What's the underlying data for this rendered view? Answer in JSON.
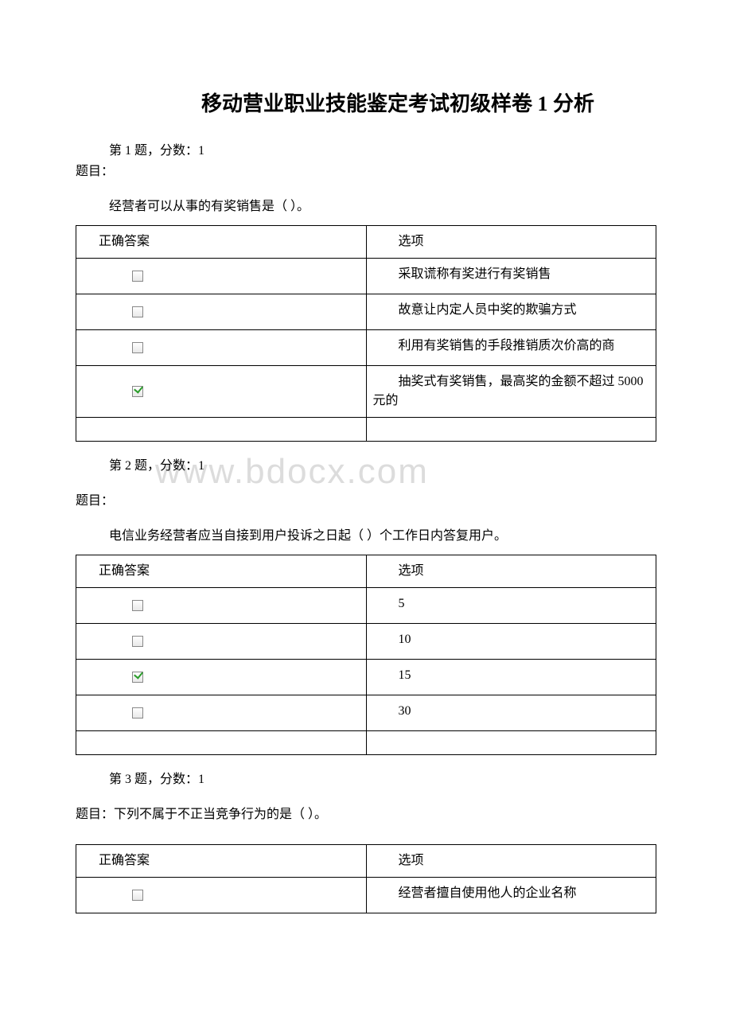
{
  "title": "移动营业职业技能鉴定考试初级样卷 1 分析",
  "watermark": "www.bdocx.com",
  "questions": [
    {
      "header": "第 1 题，分数：1",
      "label": "题目：",
      "text": "经营者可以从事的有奖销售是（ ）。",
      "columns": [
        "正确答案",
        "选项"
      ],
      "rows": [
        {
          "checked": false,
          "option": "采取谎称有奖进行有奖销售"
        },
        {
          "checked": false,
          "option": "故意让内定人员中奖的欺骗方式"
        },
        {
          "checked": false,
          "option": "利用有奖销售的手段推销质次价高的商"
        },
        {
          "checked": true,
          "option": "抽奖式有奖销售，最高奖的金额不超过 5000 元的"
        }
      ]
    },
    {
      "header": "第 2 题，分数：1",
      "label": "题目：",
      "text": "电信业务经营者应当自接到用户投诉之日起（ ）个工作日内答复用户。",
      "columns": [
        "正确答案",
        "选项"
      ],
      "rows": [
        {
          "checked": false,
          "option": "5"
        },
        {
          "checked": false,
          "option": "10"
        },
        {
          "checked": true,
          "option": "15"
        },
        {
          "checked": false,
          "option": "30"
        }
      ]
    },
    {
      "header": "第 3 题，分数：1",
      "label": "题目：下列不属于不正当竞争行为的是（ ）。",
      "columns": [
        "正确答案",
        "选项"
      ],
      "rows": [
        {
          "checked": false,
          "option": "经营者擅自使用他人的企业名称"
        }
      ]
    }
  ]
}
